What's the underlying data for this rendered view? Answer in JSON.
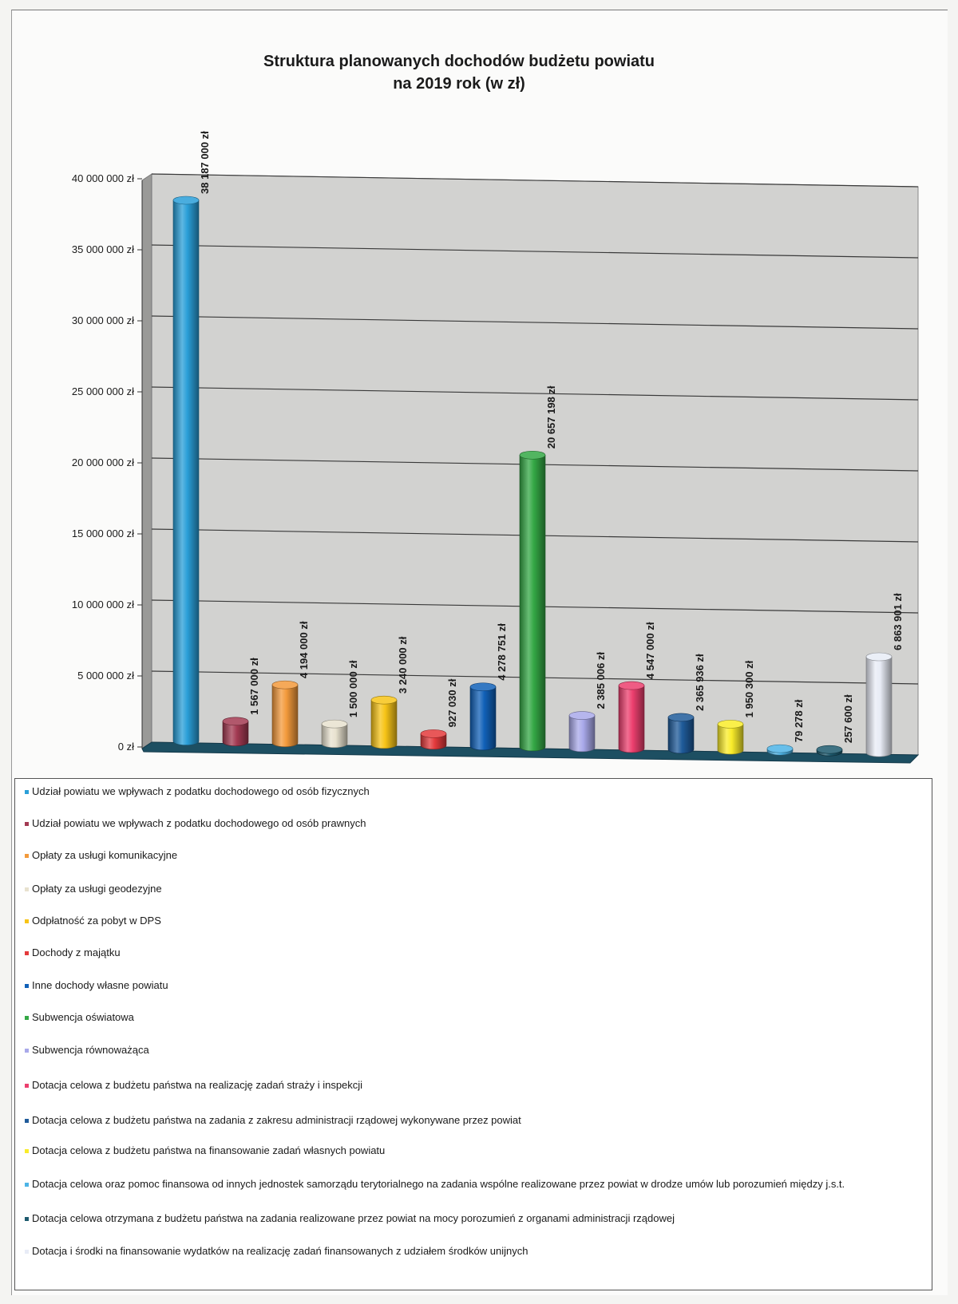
{
  "chart_data": {
    "type": "bar",
    "title": "Struktura planowanych dochodów budżetu powiatu",
    "subtitle": "na 2019 rok (w zł)",
    "xlabel": "",
    "ylabel": "",
    "ylim": [
      0,
      40000000
    ],
    "y_ticks": [
      "0 zł",
      "5 000 000 zł",
      "10 000 000 zł",
      "15 000 000 zł",
      "20 000 000 zł",
      "25 000 000 zł",
      "30 000 000 zł",
      "35 000 000 zł",
      "40 000 000 zł"
    ],
    "grid": true,
    "legend_position": "bottom",
    "bar_style": "3d-cylinder",
    "categories": [
      "Udział powiatu we wpływach z podatku dochodowego od osób fizycznych",
      "Udział powiatu we wpływach z podatku dochodowego od osób prawnych",
      "Opłaty za usługi komunikacyjne",
      "Opłaty za usługi geodezyjne",
      "Odpłatność za pobyt w DPS",
      "Dochody z majątku",
      "Inne dochody własne powiatu",
      "Subwencja oświatowa",
      "Subwencja równoważąca",
      "Dotacja celowa z budżetu państwa na realizację zadań straży i inspekcji",
      "Dotacja celowa z budżetu państwa na zadania z zakresu administracji rządowej wykonywane przez powiat",
      "Dotacja celowa z budżetu państwa na finansowanie zadań własnych powiatu",
      "Dotacja celowa oraz pomoc finansowa od innych jednostek samorządu terytorialnego na zadania wspólne realizowane przez powiat w drodze umów lub porozumień między j.s.t.",
      "Dotacja celowa otrzymana z budżetu państwa na zadania realizowane przez powiat na mocy porozumień z organami administracji rządowej",
      "Dotacja i środki na finansowanie wydatków na realizację zadań finansowanych z udziałem środków unijnych"
    ],
    "values": [
      38187000,
      1567000,
      4194000,
      1500000,
      3240000,
      927030,
      4278751,
      20657198,
      2385006,
      4547000,
      2365936,
      1950300,
      79278,
      257600,
      6863901
    ],
    "data_labels": [
      "38 187 000 zł",
      "1 567 000 zł",
      "4 194 000 zł",
      "1 500 000 zł",
      "3 240 000 zł",
      "927 030 zł",
      "4 278 751 zł",
      "20 657 198 zł",
      "2 385 006 zł",
      "4 547 000 zł",
      "2 365 936 zł",
      "1 950 300 zł",
      "79 278 zł",
      "257 600 zł",
      "6 863 901 zł"
    ],
    "colors": [
      "#2a9fd8",
      "#a33a52",
      "#f39a3c",
      "#e8e2cf",
      "#f7c417",
      "#e43a3c",
      "#1161b8",
      "#34a845",
      "#a9a9ea",
      "#ec3f6e",
      "#1f5b9a",
      "#f9ec2a",
      "#4db4e6",
      "#1d5a6e",
      "#e8ecf6"
    ]
  }
}
